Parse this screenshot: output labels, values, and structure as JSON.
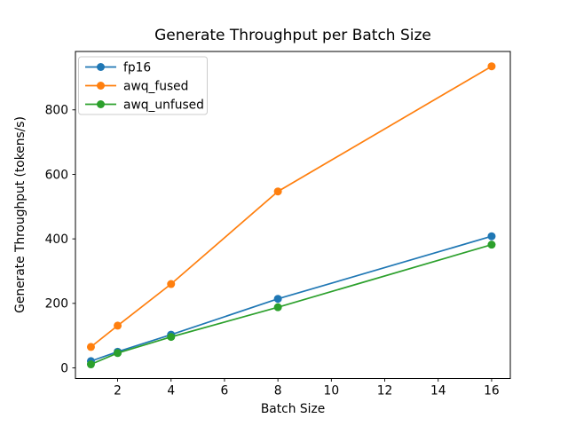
{
  "figure": {
    "background": "#ffffff"
  },
  "chart_data": {
    "type": "line",
    "title": "Generate Throughput per Batch Size",
    "xlabel": "Batch Size",
    "ylabel": "Generate Throughput (tokens/s)",
    "x": [
      1,
      2,
      4,
      8,
      16
    ],
    "series": [
      {
        "name": "fp16",
        "color": "#1f77b4",
        "values": [
          21,
          50,
          103,
          214,
          408
        ]
      },
      {
        "name": "awq_fused",
        "color": "#ff7f0e",
        "values": [
          65,
          131,
          260,
          547,
          935
        ]
      },
      {
        "name": "awq_unfused",
        "color": "#2ca02c",
        "values": [
          11,
          46,
          96,
          188,
          382
        ]
      }
    ],
    "marker": "o",
    "xticks": [
      2,
      4,
      6,
      8,
      10,
      12,
      14,
      16
    ],
    "yticks": [
      0,
      200,
      400,
      600,
      800
    ],
    "xlim": [
      0.42,
      16.7
    ],
    "ylim": [
      -33,
      981
    ],
    "grid": false,
    "legend": {
      "position": "upper-left"
    }
  }
}
